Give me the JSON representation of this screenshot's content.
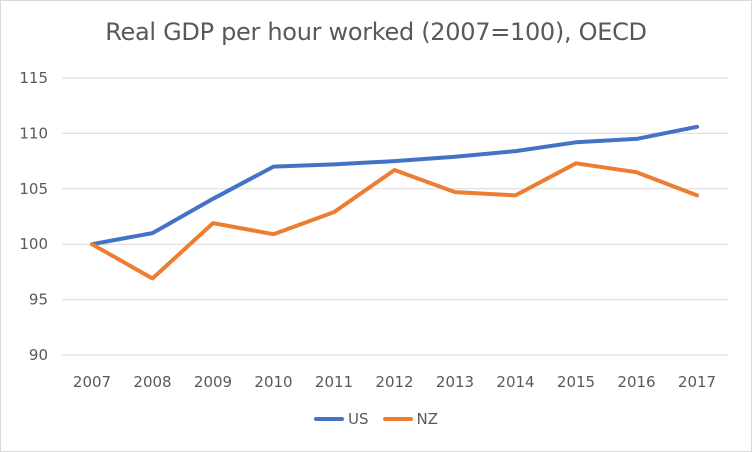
{
  "chart_data": {
    "type": "line",
    "title": "Real GDP per hour worked (2007=100), OECD",
    "xlabel": "",
    "ylabel": "",
    "categories": [
      "2007",
      "2008",
      "2009",
      "2010",
      "2011",
      "2012",
      "2013",
      "2014",
      "2015",
      "2016",
      "2017"
    ],
    "series": [
      {
        "name": "US",
        "color": "#4472c4",
        "values": [
          100,
          101.0,
          104.1,
          107.0,
          107.2,
          107.5,
          107.9,
          108.4,
          109.2,
          109.5,
          110.6
        ]
      },
      {
        "name": "NZ",
        "color": "#ed7d31",
        "values": [
          100,
          96.9,
          101.9,
          100.9,
          102.9,
          106.7,
          104.7,
          104.4,
          107.3,
          106.5,
          104.4
        ]
      }
    ],
    "ylim": [
      90,
      115
    ],
    "yticks": [
      90,
      95,
      100,
      105,
      110,
      115
    ],
    "grid": true,
    "legend_position": "bottom"
  }
}
